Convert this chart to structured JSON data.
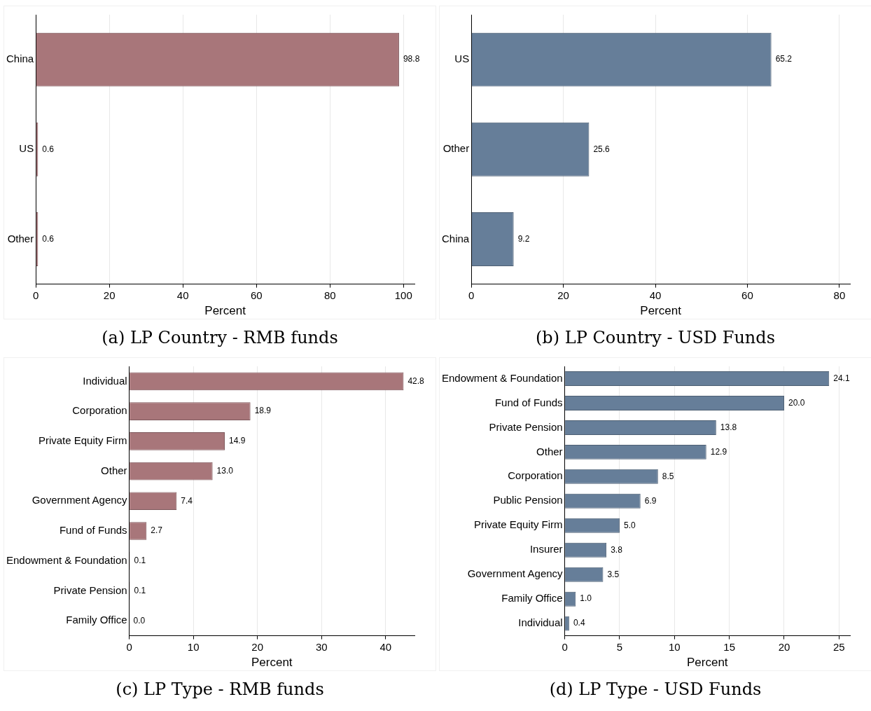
{
  "chart_data": [
    {
      "type": "bar",
      "orientation": "horizontal",
      "title": "(a) LP Country - RMB funds",
      "xlabel": "Percent",
      "categories": [
        "China",
        "US",
        "Other"
      ],
      "values": [
        98.8,
        0.6,
        0.6
      ],
      "value_labels": [
        "98.8",
        "0.6",
        "0.6"
      ],
      "color": "#a8767a",
      "xlim": [
        0,
        103
      ],
      "xticks": [
        0,
        20,
        40,
        60,
        80,
        100
      ],
      "grid": "x",
      "legend": false
    },
    {
      "type": "bar",
      "orientation": "horizontal",
      "title": "(b) LP Country - USD Funds",
      "xlabel": "Percent",
      "categories": [
        "US",
        "Other",
        "China"
      ],
      "values": [
        65.2,
        25.6,
        9.2
      ],
      "value_labels": [
        "65.2",
        "25.6",
        "9.2"
      ],
      "color": "#667e99",
      "xlim": [
        0,
        82.3
      ],
      "xticks": [
        0,
        20,
        40,
        60,
        80
      ],
      "grid": "x",
      "legend": false
    },
    {
      "type": "bar",
      "orientation": "horizontal",
      "title": "(c) LP Type - RMB funds",
      "xlabel": "Percent",
      "categories": [
        "Individual",
        "Corporation",
        "Private Equity Firm",
        "Other",
        "Government Agency",
        "Fund of Funds",
        "Endowment & Foundation",
        "Private Pension",
        "Family Office"
      ],
      "values": [
        42.8,
        18.9,
        14.9,
        13.0,
        7.4,
        2.7,
        0.1,
        0.1,
        0.0
      ],
      "value_labels": [
        "42.8",
        "18.9",
        "14.9",
        "13.0",
        "7.4",
        "2.7",
        "0.1",
        "0.1",
        "0.0"
      ],
      "color": "#a8767a",
      "xlim": [
        0,
        44.5
      ],
      "xticks": [
        0,
        10,
        20,
        30,
        40
      ],
      "grid": "x",
      "legend": false
    },
    {
      "type": "bar",
      "orientation": "horizontal",
      "title": "(d) LP Type - USD Funds",
      "xlabel": "Percent",
      "categories": [
        "Endowment & Foundation",
        "Fund of Funds",
        "Private Pension",
        "Other",
        "Corporation",
        "Public Pension",
        "Private Equity Firm",
        "Insurer",
        "Government Agency",
        "Family Office",
        "Individual"
      ],
      "values": [
        24.1,
        20.0,
        13.8,
        12.9,
        8.5,
        6.9,
        5.0,
        3.8,
        3.5,
        1.0,
        0.4
      ],
      "value_labels": [
        "24.1",
        "20.0",
        "13.8",
        "12.9",
        "8.5",
        "6.9",
        "5.0",
        "3.8",
        "3.5",
        "1.0",
        "0.4"
      ],
      "color": "#667e99",
      "xlim": [
        0,
        26
      ],
      "xticks": [
        0,
        5,
        10,
        15,
        20,
        25
      ],
      "grid": "x",
      "legend": false
    }
  ]
}
